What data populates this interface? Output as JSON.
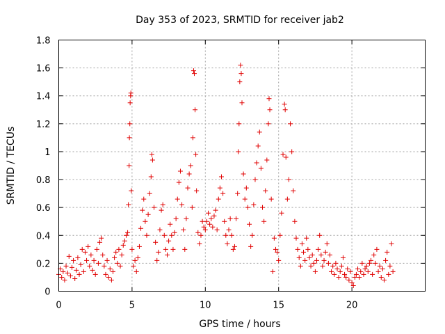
{
  "chart_data": {
    "type": "scatter",
    "title": "Day 353 of 2023, SRMTID for receiver jab2",
    "xlabel": "GPS time / hours",
    "ylabel": "SRMTID / TECUs",
    "xlim": [
      0,
      25
    ],
    "ylim": [
      0,
      1.8
    ],
    "xticks": [
      0,
      5,
      10,
      15,
      20
    ],
    "yticks": [
      0,
      0.2,
      0.4,
      0.6,
      0.8,
      1.0,
      1.2,
      1.4,
      1.6,
      1.8
    ],
    "xtick_labels": [
      "0",
      "5",
      "10",
      "15",
      "20"
    ],
    "ytick_labels": [
      "0",
      "0.2",
      "0.4",
      "0.6",
      "0.8",
      "1",
      "1.2",
      "1.4",
      "1.6",
      "1.8"
    ],
    "grid": true,
    "marker": "+",
    "color": "#e00000",
    "series": [
      {
        "name": "jab2",
        "points": [
          [
            0.0,
            0.12
          ],
          [
            0.1,
            0.16
          ],
          [
            0.2,
            0.1
          ],
          [
            0.3,
            0.14
          ],
          [
            0.4,
            0.08
          ],
          [
            0.5,
            0.18
          ],
          [
            0.6,
            0.13
          ],
          [
            0.7,
            0.25
          ],
          [
            0.8,
            0.11
          ],
          [
            0.9,
            0.17
          ],
          [
            1.0,
            0.22
          ],
          [
            1.1,
            0.09
          ],
          [
            1.2,
            0.15
          ],
          [
            1.3,
            0.24
          ],
          [
            1.4,
            0.12
          ],
          [
            1.5,
            0.19
          ],
          [
            1.6,
            0.3
          ],
          [
            1.7,
            0.14
          ],
          [
            1.8,
            0.28
          ],
          [
            1.9,
            0.22
          ],
          [
            2.0,
            0.32
          ],
          [
            2.1,
            0.18
          ],
          [
            2.2,
            0.26
          ],
          [
            2.3,
            0.15
          ],
          [
            2.4,
            0.22
          ],
          [
            2.5,
            0.12
          ],
          [
            2.6,
            0.3
          ],
          [
            2.7,
            0.2
          ],
          [
            2.8,
            0.35
          ],
          [
            2.9,
            0.38
          ],
          [
            3.0,
            0.26
          ],
          [
            3.1,
            0.18
          ],
          [
            3.2,
            0.12
          ],
          [
            3.3,
            0.22
          ],
          [
            3.4,
            0.1
          ],
          [
            3.5,
            0.16
          ],
          [
            3.6,
            0.08
          ],
          [
            3.7,
            0.14
          ],
          [
            3.8,
            0.24
          ],
          [
            3.9,
            0.28
          ],
          [
            4.0,
            0.2
          ],
          [
            4.1,
            0.3
          ],
          [
            4.2,
            0.18
          ],
          [
            4.3,
            0.26
          ],
          [
            4.4,
            0.33
          ],
          [
            4.5,
            0.36
          ],
          [
            4.6,
            0.4
          ],
          [
            4.7,
            0.42
          ],
          [
            4.75,
            0.62
          ],
          [
            4.8,
            0.9
          ],
          [
            4.82,
            1.1
          ],
          [
            4.85,
            1.2
          ],
          [
            4.87,
            1.35
          ],
          [
            4.9,
            1.4
          ],
          [
            4.92,
            1.42
          ],
          [
            4.95,
            0.72
          ],
          [
            5.0,
            0.3
          ],
          [
            5.1,
            0.18
          ],
          [
            5.2,
            0.22
          ],
          [
            5.3,
            0.14
          ],
          [
            5.4,
            0.24
          ],
          [
            5.5,
            0.32
          ],
          [
            5.6,
            0.45
          ],
          [
            5.7,
            0.58
          ],
          [
            5.8,
            0.66
          ],
          [
            5.9,
            0.5
          ],
          [
            6.0,
            0.4
          ],
          [
            6.1,
            0.55
          ],
          [
            6.2,
            0.7
          ],
          [
            6.3,
            0.82
          ],
          [
            6.35,
            0.98
          ],
          [
            6.4,
            0.94
          ],
          [
            6.5,
            0.6
          ],
          [
            6.6,
            0.35
          ],
          [
            6.7,
            0.22
          ],
          [
            6.8,
            0.28
          ],
          [
            6.9,
            0.44
          ],
          [
            7.0,
            0.58
          ],
          [
            7.1,
            0.62
          ],
          [
            7.2,
            0.4
          ],
          [
            7.3,
            0.3
          ],
          [
            7.4,
            0.26
          ],
          [
            7.5,
            0.36
          ],
          [
            7.6,
            0.48
          ],
          [
            7.7,
            0.4
          ],
          [
            7.8,
            0.3
          ],
          [
            7.9,
            0.42
          ],
          [
            8.0,
            0.52
          ],
          [
            8.1,
            0.66
          ],
          [
            8.2,
            0.78
          ],
          [
            8.3,
            0.86
          ],
          [
            8.4,
            0.62
          ],
          [
            8.5,
            0.44
          ],
          [
            8.6,
            0.3
          ],
          [
            8.7,
            0.52
          ],
          [
            8.8,
            0.74
          ],
          [
            8.9,
            0.84
          ],
          [
            9.0,
            0.9
          ],
          [
            9.1,
            0.6
          ],
          [
            9.15,
            1.1
          ],
          [
            9.2,
            1.58
          ],
          [
            9.25,
            1.56
          ],
          [
            9.3,
            1.3
          ],
          [
            9.35,
            0.98
          ],
          [
            9.4,
            0.72
          ],
          [
            9.5,
            0.42
          ],
          [
            9.6,
            0.34
          ],
          [
            9.7,
            0.4
          ],
          [
            9.8,
            0.5
          ],
          [
            9.9,
            0.46
          ],
          [
            10.0,
            0.44
          ],
          [
            10.1,
            0.5
          ],
          [
            10.2,
            0.56
          ],
          [
            10.3,
            0.48
          ],
          [
            10.4,
            0.52
          ],
          [
            10.5,
            0.46
          ],
          [
            10.6,
            0.54
          ],
          [
            10.7,
            0.58
          ],
          [
            10.8,
            0.44
          ],
          [
            10.9,
            0.66
          ],
          [
            11.0,
            0.74
          ],
          [
            11.1,
            0.82
          ],
          [
            11.2,
            0.7
          ],
          [
            11.3,
            0.5
          ],
          [
            11.4,
            0.4
          ],
          [
            11.5,
            0.34
          ],
          [
            11.6,
            0.44
          ],
          [
            11.7,
            0.52
          ],
          [
            11.8,
            0.4
          ],
          [
            11.9,
            0.3
          ],
          [
            12.0,
            0.32
          ],
          [
            12.1,
            0.52
          ],
          [
            12.2,
            0.7
          ],
          [
            12.25,
            1.0
          ],
          [
            12.3,
            1.2
          ],
          [
            12.35,
            1.5
          ],
          [
            12.4,
            1.62
          ],
          [
            12.45,
            1.56
          ],
          [
            12.5,
            1.35
          ],
          [
            12.6,
            0.84
          ],
          [
            12.7,
            0.66
          ],
          [
            12.8,
            0.74
          ],
          [
            12.9,
            0.6
          ],
          [
            13.0,
            0.48
          ],
          [
            13.1,
            0.32
          ],
          [
            13.2,
            0.4
          ],
          [
            13.3,
            0.62
          ],
          [
            13.4,
            0.8
          ],
          [
            13.5,
            0.92
          ],
          [
            13.6,
            1.04
          ],
          [
            13.7,
            1.14
          ],
          [
            13.8,
            0.88
          ],
          [
            13.9,
            0.6
          ],
          [
            14.0,
            0.5
          ],
          [
            14.1,
            0.72
          ],
          [
            14.2,
            0.94
          ],
          [
            14.3,
            1.2
          ],
          [
            14.35,
            1.38
          ],
          [
            14.4,
            1.3
          ],
          [
            14.5,
            0.66
          ],
          [
            14.6,
            0.14
          ],
          [
            14.7,
            0.38
          ],
          [
            14.8,
            0.3
          ],
          [
            14.9,
            0.28
          ],
          [
            15.0,
            0.22
          ],
          [
            15.1,
            0.4
          ],
          [
            15.2,
            0.56
          ],
          [
            15.3,
            0.98
          ],
          [
            15.4,
            1.34
          ],
          [
            15.45,
            1.3
          ],
          [
            15.5,
            0.96
          ],
          [
            15.6,
            0.66
          ],
          [
            15.7,
            0.8
          ],
          [
            15.8,
            1.2
          ],
          [
            15.9,
            1.0
          ],
          [
            16.0,
            0.72
          ],
          [
            16.1,
            0.5
          ],
          [
            16.2,
            0.38
          ],
          [
            16.3,
            0.3
          ],
          [
            16.4,
            0.24
          ],
          [
            16.5,
            0.18
          ],
          [
            16.6,
            0.34
          ],
          [
            16.7,
            0.28
          ],
          [
            16.8,
            0.22
          ],
          [
            16.9,
            0.38
          ],
          [
            17.0,
            0.3
          ],
          [
            17.1,
            0.24
          ],
          [
            17.2,
            0.18
          ],
          [
            17.3,
            0.26
          ],
          [
            17.4,
            0.2
          ],
          [
            17.5,
            0.14
          ],
          [
            17.6,
            0.22
          ],
          [
            17.7,
            0.3
          ],
          [
            17.8,
            0.4
          ],
          [
            17.9,
            0.26
          ],
          [
            18.0,
            0.18
          ],
          [
            18.1,
            0.22
          ],
          [
            18.2,
            0.28
          ],
          [
            18.3,
            0.34
          ],
          [
            18.4,
            0.2
          ],
          [
            18.5,
            0.26
          ],
          [
            18.6,
            0.14
          ],
          [
            18.7,
            0.18
          ],
          [
            18.8,
            0.12
          ],
          [
            18.9,
            0.2
          ],
          [
            19.0,
            0.16
          ],
          [
            19.1,
            0.1
          ],
          [
            19.2,
            0.14
          ],
          [
            19.3,
            0.18
          ],
          [
            19.4,
            0.24
          ],
          [
            19.5,
            0.12
          ],
          [
            19.6,
            0.1
          ],
          [
            19.7,
            0.16
          ],
          [
            19.8,
            0.08
          ],
          [
            19.9,
            0.14
          ],
          [
            20.0,
            0.06
          ],
          [
            20.1,
            0.04
          ],
          [
            20.2,
            0.1
          ],
          [
            20.3,
            0.12
          ],
          [
            20.4,
            0.16
          ],
          [
            20.5,
            0.1
          ],
          [
            20.6,
            0.14
          ],
          [
            20.7,
            0.2
          ],
          [
            20.8,
            0.12
          ],
          [
            20.9,
            0.16
          ],
          [
            21.0,
            0.18
          ],
          [
            21.1,
            0.14
          ],
          [
            21.2,
            0.2
          ],
          [
            21.3,
            0.22
          ],
          [
            21.4,
            0.12
          ],
          [
            21.5,
            0.26
          ],
          [
            21.6,
            0.2
          ],
          [
            21.7,
            0.3
          ],
          [
            21.8,
            0.14
          ],
          [
            21.9,
            0.18
          ],
          [
            22.0,
            0.1
          ],
          [
            22.1,
            0.16
          ],
          [
            22.2,
            0.08
          ],
          [
            22.3,
            0.22
          ],
          [
            22.4,
            0.28
          ],
          [
            22.5,
            0.12
          ],
          [
            22.6,
            0.18
          ],
          [
            22.7,
            0.34
          ],
          [
            22.8,
            0.14
          ]
        ]
      }
    ]
  }
}
